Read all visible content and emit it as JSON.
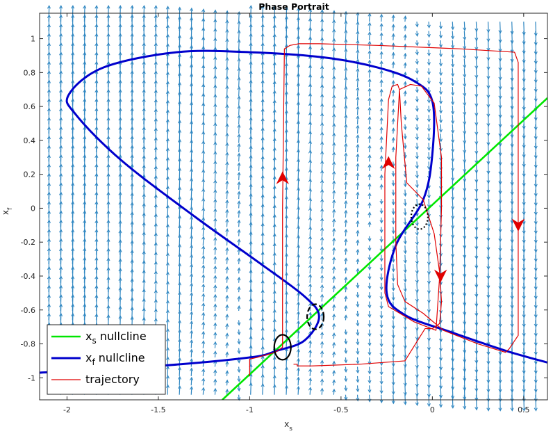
{
  "chart_data": {
    "type": "line",
    "title": "Phase Portrait",
    "xlabel": "x",
    "xlabel_sub": "s",
    "ylabel": "x",
    "ylabel_sub": "f",
    "xlim": [
      -2.15,
      0.63
    ],
    "ylim": [
      -1.13,
      1.15
    ],
    "xticks": [
      -2,
      -1.5,
      -1,
      -0.5,
      0,
      0.5
    ],
    "xtick_labels": [
      "-2",
      "-1.5",
      "-1",
      "-0.5",
      "0",
      "0.5"
    ],
    "yticks": [
      -1,
      -0.8,
      -0.6,
      -0.4,
      -0.2,
      0,
      0.2,
      0.4,
      0.6,
      0.8,
      1
    ],
    "ytick_labels": [
      "-1",
      "-0.8",
      "-0.6",
      "-0.4",
      "-0.2",
      "0",
      "0.2",
      "0.4",
      "0.6",
      "0.8",
      "1"
    ],
    "grid": false,
    "legend_position": "bottom-left",
    "colors": {
      "xs_nullcline": "#00e600",
      "xf_nullcline": "#0000cc",
      "trajectory": "#e00000",
      "arrows": "#2e86c1",
      "markers": "#000000"
    },
    "series": [
      {
        "key": "xs",
        "name": "x",
        "name_sub": "s",
        "name_suffix": " nullcline",
        "x": [
          -1.15,
          0.63
        ],
        "y": [
          -1.13,
          0.65
        ]
      },
      {
        "key": "xf",
        "name": "x",
        "name_sub": "f",
        "name_suffix": " nullcline",
        "x": [
          -2.15,
          -1.5,
          -1.0,
          -0.85,
          -0.7,
          -0.62,
          -0.7,
          -0.95,
          -1.3,
          -1.7,
          -1.95,
          -1.99,
          -1.8,
          -1.4,
          -1.0,
          -0.6,
          -0.3,
          -0.1,
          0.0,
          0.0,
          -0.05,
          -0.2,
          -0.25,
          -0.15,
          0.1,
          0.4,
          0.63
        ],
        "y": [
          -0.97,
          -0.93,
          -0.88,
          -0.84,
          -0.78,
          -0.64,
          -0.52,
          -0.32,
          -0.05,
          0.28,
          0.55,
          0.67,
          0.83,
          0.92,
          0.92,
          0.89,
          0.83,
          0.75,
          0.63,
          0.32,
          0.05,
          -0.22,
          -0.5,
          -0.63,
          -0.73,
          -0.84,
          -0.91
        ]
      },
      {
        "key": "traj",
        "name": "trajectory",
        "x": [
          -1.0,
          -1.0,
          -0.96,
          -0.86,
          -0.82,
          -0.82,
          -0.81,
          -0.78,
          -0.73,
          -0.62,
          -0.3,
          0.15,
          0.45,
          0.47,
          0.47,
          0.42,
          0.4,
          0.25,
          0.06,
          -0.05,
          -0.15,
          -0.19,
          -0.2,
          -0.2,
          -0.18,
          -0.12,
          -0.06,
          0.01,
          0.05,
          0.05,
          0.04,
          0.02,
          -0.1,
          -0.24,
          -0.26,
          -0.26,
          -0.24,
          -0.22,
          -0.19,
          -0.18,
          -0.17,
          -0.14,
          -0.05,
          0.01,
          0.04,
          0.05,
          0.04,
          0.0,
          -0.04,
          -0.15,
          -0.4,
          -0.66,
          -0.74,
          -0.74,
          -0.76
        ],
        "y": [
          -0.99,
          -0.89,
          -0.88,
          -0.85,
          -0.82,
          0.0,
          0.94,
          0.96,
          0.97,
          0.97,
          0.96,
          0.94,
          0.92,
          0.86,
          -0.75,
          -0.83,
          -0.85,
          -0.8,
          -0.72,
          -0.62,
          -0.55,
          -0.45,
          -0.2,
          0.3,
          0.7,
          0.73,
          0.72,
          0.62,
          0.3,
          0.0,
          -0.4,
          -0.72,
          -0.67,
          -0.58,
          -0.5,
          0.2,
          0.64,
          0.72,
          0.73,
          0.7,
          0.5,
          0.15,
          0.05,
          -0.15,
          -0.38,
          -0.55,
          -0.68,
          -0.71,
          -0.71,
          -0.9,
          -0.92,
          -0.93,
          -0.93,
          -0.92,
          -0.92
        ]
      }
    ],
    "direction_arrows": [
      {
        "x": -0.82,
        "y": 0.18,
        "dir": "up"
      },
      {
        "x": -0.24,
        "y": 0.27,
        "dir": "up"
      },
      {
        "x": 0.045,
        "y": -0.4,
        "dir": "down"
      },
      {
        "x": 0.47,
        "y": -0.1,
        "dir": "down"
      }
    ],
    "markers": [
      {
        "x": -0.82,
        "y": -0.82,
        "style": "solid"
      },
      {
        "x": -0.64,
        "y": -0.64,
        "style": "dashed"
      },
      {
        "x": -0.07,
        "y": -0.05,
        "style": "dotted"
      }
    ]
  }
}
